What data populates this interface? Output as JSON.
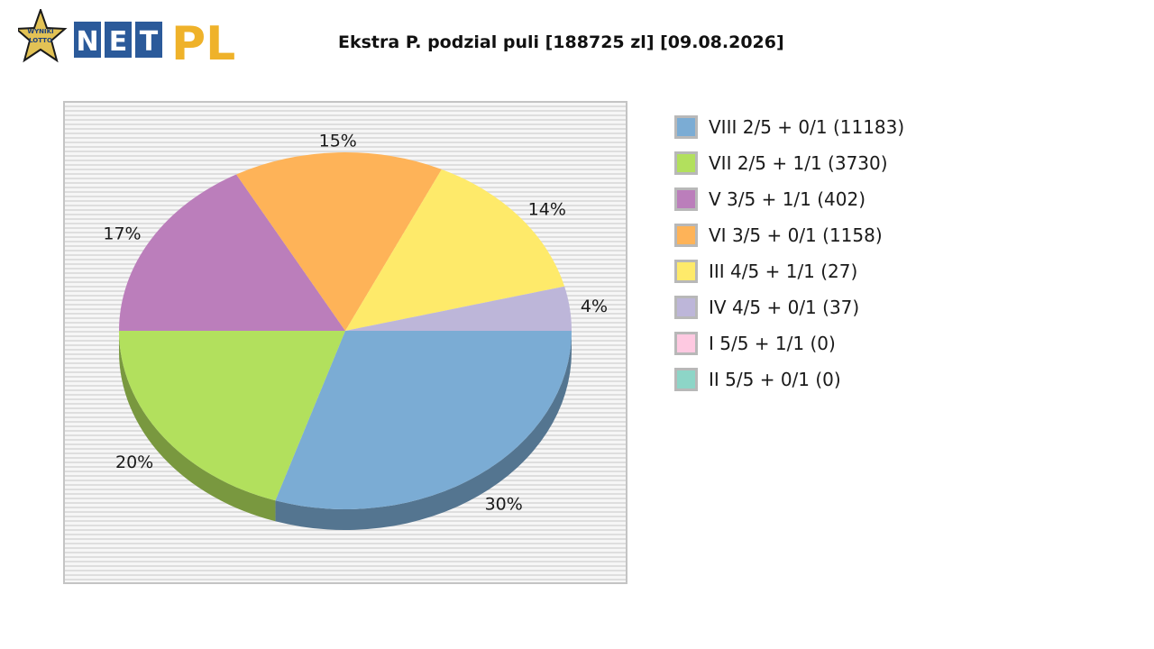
{
  "header": {
    "title": "Ekstra P. podzial puli [188725 zl] [09.08.2026]",
    "logo": {
      "badge_line1": "WYNIKI",
      "badge_line2": "LOTTO",
      "letters": [
        "N",
        "E",
        "T"
      ],
      "suffix": "PL"
    }
  },
  "colors": {
    "logo_blue": "#2b5a9a",
    "logo_gold": "#efb22a",
    "star": "#e2c255"
  },
  "chart_data": {
    "type": "pie",
    "title": "Ekstra P. podzial puli [188725 zl] [09.08.2026]",
    "legend_position": "right",
    "categories": [
      "VIII 2/5 + 0/1 (11183)",
      "VII 2/5 + 1/1 (3730)",
      "V 3/5 + 1/1 (402)",
      "VI 3/5 + 0/1 (1158)",
      "III 4/5 + 1/1 (27)",
      "IV 4/5 + 0/1 (37)",
      "I 5/5 + 1/1 (0)",
      "II 5/5 + 0/1 (0)"
    ],
    "values": [
      30,
      20,
      17,
      15,
      14,
      4,
      0,
      0
    ],
    "labels": [
      "30%",
      "20%",
      "17%",
      "15%",
      "14%",
      "4%",
      "",
      ""
    ],
    "colors": [
      "#7bacd4",
      "#b2e05d",
      "#bb7ebb",
      "#feb358",
      "#feea6a",
      "#bdb6d9",
      "#fec9e1",
      "#8dd5c7"
    ]
  }
}
